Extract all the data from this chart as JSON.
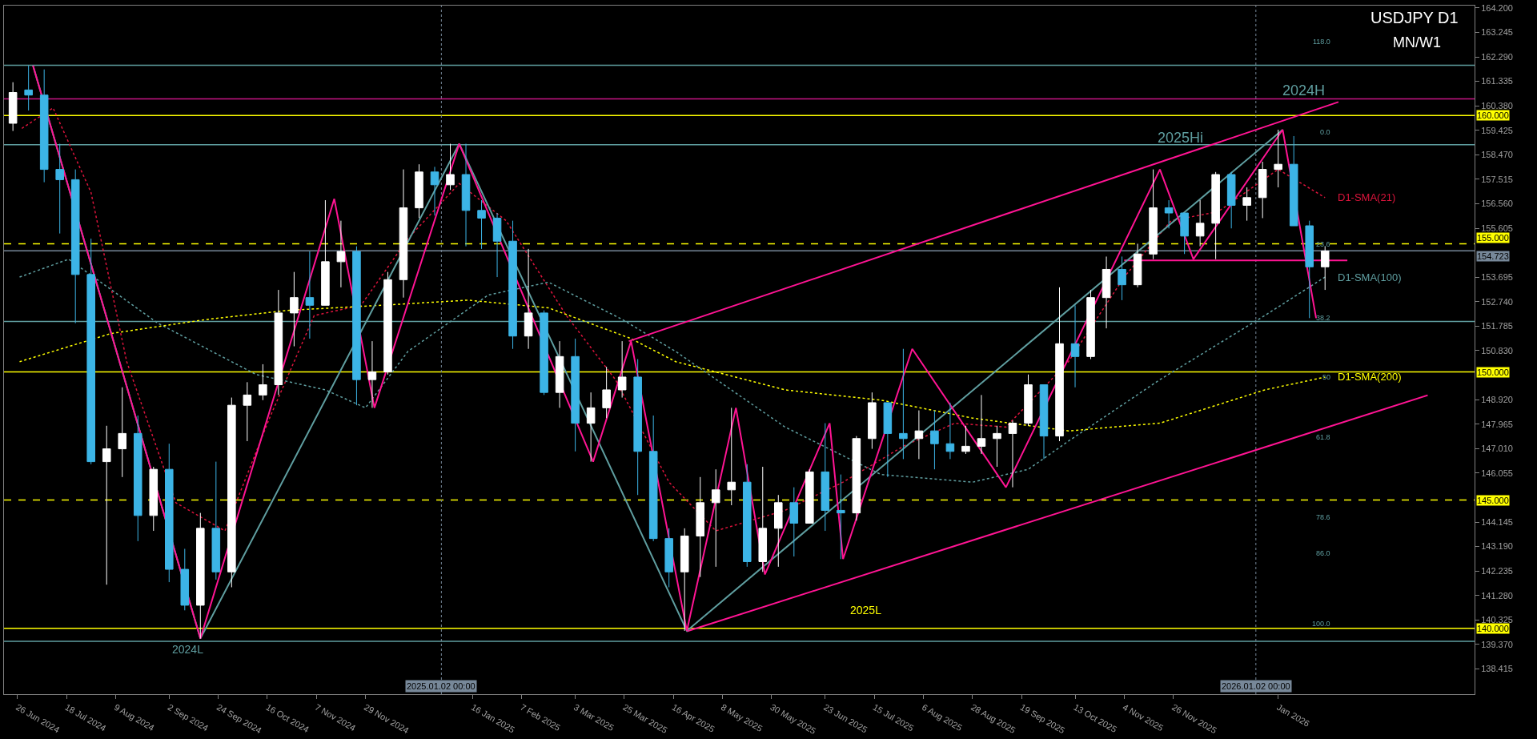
{
  "chart_data": {
    "type": "candlestick",
    "title": "USDJPY D1",
    "subtitle": "MN/W1",
    "x": [
      "2024-06-24",
      "2024-07-01",
      "2024-07-08",
      "2024-07-15",
      "2024-07-22",
      "2024-07-29",
      "2024-08-05",
      "2024-08-12",
      "2024-08-19",
      "2024-08-26",
      "2024-09-02",
      "2024-09-09",
      "2024-09-16",
      "2024-09-23",
      "2024-09-30",
      "2024-10-07",
      "2024-10-14",
      "2024-10-21",
      "2024-10-28",
      "2024-11-04",
      "2024-11-11",
      "2024-11-18",
      "2024-11-25",
      "2024-12-02",
      "2024-12-09",
      "2024-12-16",
      "2024-12-23",
      "2024-12-30",
      "2025-01-06",
      "2025-01-13",
      "2025-01-20",
      "2025-01-27",
      "2025-02-03",
      "2025-02-10",
      "2025-02-17",
      "2025-02-24",
      "2025-03-03",
      "2025-03-10",
      "2025-03-17",
      "2025-03-24",
      "2025-03-31",
      "2025-04-07",
      "2025-04-14",
      "2025-04-21",
      "2025-04-28",
      "2025-05-05",
      "2025-05-12",
      "2025-05-19",
      "2025-05-26",
      "2025-06-02",
      "2025-06-09",
      "2025-06-16",
      "2025-06-23",
      "2025-06-30",
      "2025-07-07",
      "2025-07-14",
      "2025-07-21",
      "2025-07-28",
      "2025-08-04",
      "2025-08-11",
      "2025-08-18",
      "2025-08-25",
      "2025-09-01",
      "2025-09-08",
      "2025-09-15",
      "2025-09-22",
      "2025-09-29",
      "2025-10-06",
      "2025-10-13",
      "2025-10-20",
      "2025-10-27",
      "2025-11-03",
      "2025-11-10",
      "2025-11-17",
      "2025-11-24",
      "2025-12-01",
      "2025-12-08",
      "2025-12-15",
      "2025-12-22",
      "2025-12-29",
      "2026-01-05",
      "2026-01-12",
      "2026-01-19",
      "2026-01-26",
      "2026-02-02"
    ],
    "ohlc": [
      [
        159.7,
        161.3,
        159.4,
        160.9
      ],
      [
        161.0,
        161.95,
        160.2,
        160.8
      ],
      [
        160.8,
        161.8,
        157.4,
        157.9
      ],
      [
        157.9,
        158.9,
        155.4,
        157.5
      ],
      [
        157.5,
        157.9,
        151.9,
        153.8
      ],
      [
        153.8,
        155.2,
        146.4,
        146.5
      ],
      [
        146.5,
        147.9,
        141.7,
        147.0
      ],
      [
        147.0,
        149.4,
        145.9,
        147.6
      ],
      [
        147.6,
        148.3,
        143.4,
        144.4
      ],
      [
        144.4,
        146.3,
        143.8,
        146.2
      ],
      [
        146.2,
        147.2,
        141.8,
        142.3
      ],
      [
        142.3,
        143.1,
        140.7,
        140.9
      ],
      [
        140.9,
        144.5,
        139.6,
        143.9
      ],
      [
        143.9,
        146.5,
        141.9,
        142.2
      ],
      [
        142.2,
        149.0,
        141.6,
        148.7
      ],
      [
        148.7,
        149.6,
        147.3,
        149.1
      ],
      [
        149.1,
        150.3,
        148.9,
        149.5
      ],
      [
        149.5,
        153.2,
        149.1,
        152.3
      ],
      [
        152.3,
        153.9,
        151.0,
        152.9
      ],
      [
        152.9,
        154.7,
        151.3,
        152.6
      ],
      [
        152.6,
        156.7,
        152.6,
        154.3
      ],
      [
        154.3,
        155.9,
        153.3,
        154.7
      ],
      [
        154.7,
        154.9,
        148.7,
        149.7
      ],
      [
        149.7,
        151.2,
        148.6,
        150.0
      ],
      [
        150.0,
        153.9,
        149.9,
        153.6
      ],
      [
        153.6,
        157.9,
        152.9,
        156.4
      ],
      [
        156.4,
        158.1,
        156.0,
        157.8
      ],
      [
        157.8,
        158.0,
        156.1,
        157.3
      ],
      [
        157.3,
        158.9,
        157.1,
        157.7
      ],
      [
        157.7,
        158.9,
        154.9,
        156.3
      ],
      [
        156.3,
        156.7,
        154.8,
        156.0
      ],
      [
        156.0,
        156.2,
        153.7,
        155.1
      ],
      [
        155.1,
        155.9,
        150.9,
        151.4
      ],
      [
        151.4,
        154.8,
        150.9,
        152.3
      ],
      [
        152.3,
        152.4,
        149.1,
        149.2
      ],
      [
        149.2,
        151.2,
        148.6,
        150.6
      ],
      [
        150.6,
        151.3,
        146.9,
        148.0
      ],
      [
        148.0,
        149.2,
        146.5,
        148.6
      ],
      [
        148.6,
        150.2,
        148.2,
        149.3
      ],
      [
        149.3,
        151.2,
        149.0,
        149.8
      ],
      [
        149.8,
        150.5,
        145.2,
        146.9
      ],
      [
        146.9,
        148.3,
        143.4,
        143.5
      ],
      [
        143.5,
        143.9,
        141.6,
        142.2
      ],
      [
        142.2,
        143.9,
        139.9,
        143.6
      ],
      [
        143.6,
        145.9,
        142.0,
        144.9
      ],
      [
        144.9,
        146.2,
        142.4,
        145.4
      ],
      [
        145.4,
        148.6,
        144.8,
        145.7
      ],
      [
        145.7,
        146.4,
        142.4,
        142.6
      ],
      [
        142.6,
        146.3,
        142.2,
        143.9
      ],
      [
        143.9,
        145.2,
        142.4,
        144.9
      ],
      [
        144.9,
        145.5,
        142.8,
        144.1
      ],
      [
        144.1,
        146.2,
        144.1,
        146.1
      ],
      [
        146.1,
        148.0,
        143.8,
        144.6
      ],
      [
        144.6,
        146.0,
        142.7,
        144.5
      ],
      [
        144.5,
        147.5,
        144.2,
        147.4
      ],
      [
        147.4,
        149.2,
        147.0,
        148.8
      ],
      [
        148.8,
        148.8,
        145.9,
        147.6
      ],
      [
        147.6,
        150.9,
        146.6,
        147.4
      ],
      [
        147.4,
        148.5,
        146.6,
        147.7
      ],
      [
        147.7,
        148.5,
        146.2,
        147.2
      ],
      [
        147.2,
        148.8,
        146.6,
        146.9
      ],
      [
        146.9,
        147.9,
        146.8,
        147.1
      ],
      [
        147.1,
        149.1,
        146.8,
        147.4
      ],
      [
        147.4,
        147.9,
        146.3,
        147.6
      ],
      [
        147.6,
        148.1,
        145.5,
        148.0
      ],
      [
        148.0,
        149.9,
        147.9,
        149.5
      ],
      [
        149.5,
        149.5,
        146.6,
        147.5
      ],
      [
        147.5,
        153.3,
        147.3,
        151.1
      ],
      [
        151.1,
        152.6,
        149.4,
        150.6
      ],
      [
        150.6,
        153.2,
        150.5,
        152.9
      ],
      [
        152.9,
        154.5,
        151.7,
        154.0
      ],
      [
        154.0,
        154.5,
        152.8,
        153.4
      ],
      [
        153.4,
        155.0,
        153.3,
        154.6
      ],
      [
        154.6,
        157.9,
        154.4,
        156.4
      ],
      [
        156.4,
        156.7,
        155.6,
        156.2
      ],
      [
        156.2,
        156.2,
        154.6,
        155.3
      ],
      [
        155.3,
        156.7,
        154.9,
        155.8
      ],
      [
        155.8,
        157.8,
        154.4,
        157.7
      ],
      [
        157.7,
        157.8,
        155.6,
        156.5
      ],
      [
        156.5,
        157.2,
        155.9,
        156.8
      ],
      [
        156.8,
        158.2,
        156.0,
        157.9
      ],
      [
        157.9,
        159.45,
        157.2,
        158.1
      ],
      [
        158.1,
        159.2,
        155.7,
        155.7
      ],
      [
        155.7,
        155.9,
        152.1,
        154.1
      ],
      [
        154.1,
        154.9,
        153.2,
        154.72
      ]
    ],
    "colors": [
      "#ffffff",
      "#3cb4e6",
      "#3cb4e6",
      "#3cb4e6",
      "#3cb4e6",
      "#3cb4e6",
      "#ffffff",
      "#ffffff",
      "#3cb4e6",
      "#ffffff",
      "#3cb4e6",
      "#3cb4e6",
      "#ffffff",
      "#3cb4e6",
      "#ffffff",
      "#ffffff",
      "#ffffff",
      "#ffffff",
      "#ffffff",
      "#3cb4e6",
      "#ffffff",
      "#ffffff",
      "#3cb4e6",
      "#ffffff",
      "#ffffff",
      "#ffffff",
      "#ffffff",
      "#3cb4e6",
      "#ffffff",
      "#3cb4e6",
      "#3cb4e6",
      "#3cb4e6",
      "#3cb4e6",
      "#ffffff",
      "#3cb4e6",
      "#ffffff",
      "#3cb4e6",
      "#ffffff",
      "#ffffff",
      "#ffffff",
      "#3cb4e6",
      "#3cb4e6",
      "#3cb4e6",
      "#ffffff",
      "#ffffff",
      "#ffffff",
      "#ffffff",
      "#3cb4e6",
      "#ffffff",
      "#ffffff",
      "#3cb4e6",
      "#ffffff",
      "#3cb4e6",
      "#3cb4e6",
      "#ffffff",
      "#ffffff",
      "#3cb4e6",
      "#3cb4e6",
      "#ffffff",
      "#3cb4e6",
      "#3cb4e6",
      "#ffffff",
      "#ffffff",
      "#ffffff",
      "#ffffff",
      "#ffffff",
      "#3cb4e6",
      "#ffffff",
      "#3cb4e6",
      "#ffffff",
      "#ffffff",
      "#3cb4e6",
      "#ffffff",
      "#ffffff",
      "#3cb4e6",
      "#3cb4e6",
      "#ffffff",
      "#ffffff",
      "#3cb4e6",
      "#ffffff",
      "#ffffff",
      "#ffffff",
      "#3cb4e6",
      "#3cb4e6",
      "#ffffff"
    ],
    "series": [
      {
        "type": "line",
        "name": "D1-SMA(21)",
        "color": "#dc143c",
        "line_style": "dotted",
        "x": [
          "2024-06-28",
          "2024-07-12",
          "2024-07-29",
          "2024-08-14",
          "2024-09-05",
          "2024-09-27",
          "2024-10-17",
          "2024-11-06",
          "2024-11-27",
          "2024-12-18",
          "2025-01-10",
          "2025-01-31",
          "2025-02-27",
          "2025-03-21",
          "2025-04-14",
          "2025-05-05",
          "2025-06-05",
          "2025-07-01",
          "2025-07-28",
          "2025-08-20",
          "2025-09-12",
          "2025-10-10",
          "2025-11-04",
          "2025-11-25",
          "2025-12-16",
          "2026-01-12",
          "2026-02-02"
        ],
        "values": [
          159.5,
          160.3,
          157.0,
          150.4,
          144.9,
          143.8,
          148.2,
          152.2,
          152.6,
          155.2,
          157.35,
          155.9,
          152.2,
          149.7,
          145.7,
          143.8,
          144.6,
          145.7,
          147.1,
          148.0,
          147.85,
          150.4,
          153.7,
          155.9,
          156.25,
          157.9,
          156.8
        ]
      },
      {
        "type": "line",
        "name": "D1-SMA(100)",
        "color": "#5f9ea0",
        "line_style": "dotted",
        "x": [
          "2024-06-27",
          "2024-07-19",
          "2024-08-28",
          "2024-10-11",
          "2024-11-11",
          "2024-11-29",
          "2024-12-18",
          "2025-01-23",
          "2025-02-19",
          "2025-03-24",
          "2025-04-17",
          "2025-06-05",
          "2025-07-18",
          "2025-08-28",
          "2025-09-22",
          "2025-10-10",
          "2025-11-20",
          "2026-01-06",
          "2026-02-02"
        ],
        "values": [
          153.7,
          154.4,
          151.9,
          149.9,
          149.3,
          148.6,
          150.8,
          153.0,
          153.5,
          152.05,
          150.8,
          147.85,
          146.0,
          145.7,
          146.2,
          147.3,
          149.7,
          152.2,
          153.7
        ]
      },
      {
        "type": "line",
        "name": "D1-SMA(200)",
        "color": "#ffff00",
        "line_style": "dotted",
        "x": [
          "2024-06-27",
          "2024-08-07",
          "2024-09-19",
          "2024-10-25",
          "2024-12-06",
          "2025-01-14",
          "2025-02-19",
          "2025-03-28",
          "2025-04-17",
          "2025-06-05",
          "2025-07-18",
          "2025-08-28",
          "2025-10-10",
          "2025-11-20",
          "2026-01-06",
          "2026-02-02"
        ],
        "values": [
          150.4,
          151.5,
          152.05,
          152.4,
          152.6,
          152.8,
          152.5,
          151.3,
          150.4,
          149.3,
          148.9,
          148.2,
          147.7,
          148.0,
          149.3,
          149.8
        ]
      },
      {
        "type": "line",
        "color": "#ff1493",
        "line_style": "solid",
        "x": [
          "2025-03-27",
          "2026-02-08"
        ],
        "values": [
          151.2,
          160.53
        ]
      },
      {
        "type": "line",
        "color": "#ff1493",
        "line_style": "solid",
        "x": [
          "2025-04-22",
          "2026-03-20"
        ],
        "values": [
          139.88,
          149.09
        ]
      },
      {
        "type": "line",
        "color": "#ff1493",
        "line_style": "solid",
        "x": [
          "2025-11-04",
          "2026-02-12"
        ],
        "values": [
          154.35,
          154.35
        ]
      },
      {
        "type": "line",
        "color": "#5f9ea0",
        "line_style": "solid",
        "x": [
          "2024-07-03",
          "2024-09-16",
          "2025-01-10",
          "2025-04-22",
          "2026-01-14"
        ],
        "values": [
          161.95,
          139.6,
          158.9,
          139.9,
          159.45
        ]
      },
      {
        "type": "line",
        "color": "#ff1493",
        "line_style": "solid",
        "x": [
          "2024-07-03",
          "2024-09-16",
          "2024-11-15",
          "2024-12-03",
          "2025-01-10",
          "2025-03-11",
          "2025-03-28",
          "2025-04-22",
          "2025-05-14",
          "2025-05-27",
          "2025-06-25",
          "2025-07-01",
          "2025-08-01",
          "2025-09-12",
          "2025-11-20",
          "2025-12-05",
          "2026-01-14",
          "2026-01-29"
        ],
        "values": [
          161.95,
          139.6,
          156.75,
          148.6,
          158.9,
          146.5,
          151.2,
          139.9,
          148.6,
          142.1,
          148.0,
          142.7,
          150.9,
          145.5,
          157.9,
          154.4,
          159.45,
          152.1
        ]
      }
    ],
    "xlim": [
      "2024-06-20",
      "2026-04-10"
    ],
    "xticks": [
      {
        "value": "2024-06-26",
        "label": "26 Jun 2024"
      },
      {
        "value": "2024-07-18",
        "label": "18 Jul 2024"
      },
      {
        "value": "2024-08-09",
        "label": "9 Aug 2024"
      },
      {
        "value": "2024-09-02",
        "label": "2 Sep 2024"
      },
      {
        "value": "2024-09-24",
        "label": "24 Sep 2024"
      },
      {
        "value": "2024-10-16",
        "label": "16 Oct 2024"
      },
      {
        "value": "2024-11-07",
        "label": "7 Nov 2024"
      },
      {
        "value": "2024-11-29",
        "label": "29 Nov 2024"
      },
      {
        "value": "2025-01-16",
        "label": "16 Jan 2025"
      },
      {
        "value": "2025-02-07",
        "label": "7 Feb 2025"
      },
      {
        "value": "2025-03-03",
        "label": "3 Mar 2025"
      },
      {
        "value": "2025-03-25",
        "label": "25 Mar 2025"
      },
      {
        "value": "2025-04-16",
        "label": "16 Apr 2025"
      },
      {
        "value": "2025-05-08",
        "label": "8 May 2025"
      },
      {
        "value": "2025-05-30",
        "label": "30 May 2025"
      },
      {
        "value": "2025-06-23",
        "label": "23 Jun 2025"
      },
      {
        "value": "2025-07-15",
        "label": "15 Jul 2025"
      },
      {
        "value": "2025-08-06",
        "label": "6 Aug 2025"
      },
      {
        "value": "2025-08-28",
        "label": "28 Aug 2025"
      },
      {
        "value": "2025-09-19",
        "label": "19 Sep 2025"
      },
      {
        "value": "2025-10-13",
        "label": "13 Oct 2025"
      },
      {
        "value": "2025-11-04",
        "label": "4 Nov 2025"
      },
      {
        "value": "2025-11-26",
        "label": "26 Nov 2025"
      },
      {
        "value": "2026-01-12",
        "label": "Jan 2026"
      }
    ],
    "ylim": [
      137.43,
      164.29
    ],
    "yticks": [
      {
        "value": 164.2,
        "label": "164.200"
      },
      {
        "value": 163.245,
        "label": "163.245"
      },
      {
        "value": 162.29,
        "label": "162.290"
      },
      {
        "value": 161.335,
        "label": "161.335"
      },
      {
        "value": 160.38,
        "label": "160.380"
      },
      {
        "value": 159.425,
        "label": "159.425"
      },
      {
        "value": 158.47,
        "label": "158.470"
      },
      {
        "value": 157.515,
        "label": "157.515"
      },
      {
        "value": 156.56,
        "label": "156.560"
      },
      {
        "value": 155.605,
        "label": "155.605"
      },
      {
        "value": 153.695,
        "label": "153.695"
      },
      {
        "value": 152.74,
        "label": "152.740"
      },
      {
        "value": 151.785,
        "label": "151.785"
      },
      {
        "value": 150.83,
        "label": "150.830"
      },
      {
        "value": 148.92,
        "label": "148.920"
      },
      {
        "value": 147.965,
        "label": "147.965"
      },
      {
        "value": 147.01,
        "label": "147.010"
      },
      {
        "value": 146.055,
        "label": "146.055"
      },
      {
        "value": 144.145,
        "label": "144.145"
      },
      {
        "value": 143.19,
        "label": "143.190"
      },
      {
        "value": 142.235,
        "label": "142.235"
      },
      {
        "value": 141.28,
        "label": "141.280"
      },
      {
        "value": 140.325,
        "label": "140.325"
      },
      {
        "value": 139.37,
        "label": "139.370"
      },
      {
        "value": 138.415,
        "label": "138.415"
      }
    ],
    "ref_lines": [
      {
        "axis": "y",
        "value": 161.96,
        "label": null,
        "color": "#5f9ea0",
        "line_style": "solid"
      },
      {
        "axis": "y",
        "value": 160.65,
        "label": null,
        "color": "#c71585",
        "line_style": "solid"
      },
      {
        "axis": "y",
        "value": 160.0,
        "label": "160.000",
        "color": "#ffff00",
        "line_style": "solid"
      },
      {
        "axis": "y",
        "value": 158.86,
        "label": null,
        "color": "#5f9ea0",
        "line_style": "solid"
      },
      {
        "axis": "y",
        "value": 155.0,
        "label": "155.000",
        "color": "#ffff00",
        "line_style": "dashed"
      },
      {
        "axis": "y",
        "value": 154.723,
        "label": "154.723",
        "color": "#778899",
        "line_style": "solid"
      },
      {
        "axis": "y",
        "value": 151.97,
        "label": null,
        "color": "#5f9ea0",
        "line_style": "solid"
      },
      {
        "axis": "y",
        "value": 150.0,
        "label": "150.000",
        "color": "#ffff00",
        "line_style": "solid"
      },
      {
        "axis": "y",
        "value": 145.0,
        "label": "145.000",
        "color": "#ffff00",
        "line_style": "dashed"
      },
      {
        "axis": "y",
        "value": 140.0,
        "label": "140.000",
        "color": "#ffff00",
        "line_style": "solid"
      },
      {
        "axis": "y",
        "value": 139.49,
        "label": null,
        "color": "#5f9ea0",
        "line_style": "solid"
      },
      {
        "axis": "x",
        "value": "2025-01-02",
        "label": "2025.01.02 00:00",
        "color": "#778899",
        "line_style": "dotted"
      },
      {
        "axis": "x",
        "value": "2026-01-02",
        "label": "2026.01.02 00:00",
        "color": "#778899",
        "line_style": "dotted"
      }
    ],
    "annotations": [
      "2024H",
      "2025Hi",
      "2025L",
      "2024L",
      "118.0",
      "0.0",
      "23.6",
      "38.2",
      "50",
      "61.8",
      "78.6",
      "86.0",
      "100.0"
    ]
  }
}
